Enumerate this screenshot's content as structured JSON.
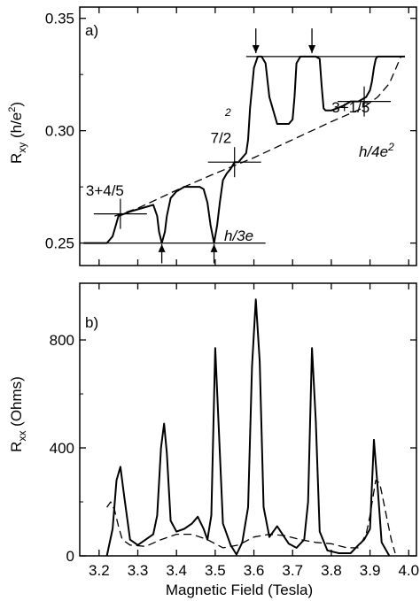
{
  "chart_data": [
    {
      "panel": "a)",
      "type": "line",
      "xlim": [
        3.15,
        4.02
      ],
      "ylim": [
        0.24,
        0.355
      ],
      "ylabel_main": "R",
      "ylabel_sub": "xy",
      "ylabel_unit": "(h/e",
      "ylabel_unit_sup": "2",
      "ylabel_unit_close": ")",
      "yticks": [
        {
          "value": 0.25,
          "label": "0.25"
        },
        {
          "value": 0.3,
          "label": "0.30"
        },
        {
          "value": 0.35,
          "label": "0.35"
        }
      ],
      "annotations": [
        {
          "text": "h/3e",
          "sup": "2",
          "x": 3.52,
          "y": 0.333,
          "style": "italic"
        },
        {
          "text": "h/4e",
          "sup": "2",
          "x": 3.62,
          "y": 0.25,
          "style": "italic"
        },
        {
          "text": "7/2",
          "x": 3.515,
          "y": 0.293
        },
        {
          "text": "3+4/5",
          "x": 3.215,
          "y": 0.2695
        },
        {
          "text": "3+1/5",
          "x": 3.85,
          "y": 0.3065
        }
      ],
      "reference_lines": [
        {
          "x": [
            3.16,
            3.63
          ],
          "y": [
            0.25,
            0.25
          ]
        },
        {
          "x": [
            3.58,
            3.99
          ],
          "y": [
            0.333,
            0.333
          ]
        }
      ],
      "crosshairs": [
        {
          "x": 3.255,
          "y": 0.263
        },
        {
          "x": 3.55,
          "y": 0.286
        },
        {
          "x": 3.885,
          "y": 0.313
        }
      ],
      "arrows": [
        {
          "x": 3.362,
          "dir": "up",
          "y_from": 0.241,
          "y_to": 0.2495
        },
        {
          "x": 3.497,
          "dir": "up",
          "y_from": 0.241,
          "y_to": 0.2495
        },
        {
          "x": 3.605,
          "dir": "down",
          "y_from": 0.3455,
          "y_to": 0.3345
        },
        {
          "x": 3.75,
          "dir": "down",
          "y_from": 0.3455,
          "y_to": 0.3345
        }
      ],
      "series": [
        {
          "style": "solid",
          "x": [
            3.16,
            3.22,
            3.235,
            3.25,
            3.265,
            3.28,
            3.3,
            3.32,
            3.34,
            3.35,
            3.355,
            3.362,
            3.37,
            3.375,
            3.385,
            3.4,
            3.42,
            3.44,
            3.46,
            3.47,
            3.48,
            3.488,
            3.497,
            3.505,
            3.512,
            3.52,
            3.53,
            3.54,
            3.55,
            3.56,
            3.57,
            3.58,
            3.585,
            3.59,
            3.6,
            3.61,
            3.62,
            3.63,
            3.64,
            3.66,
            3.69,
            3.7,
            3.705,
            3.71,
            3.72,
            3.76,
            3.77,
            3.775,
            3.78,
            3.785,
            3.8,
            3.83,
            3.85,
            3.87,
            3.89,
            3.9,
            3.905,
            3.91,
            3.915,
            3.92,
            3.99
          ],
          "y": [
            0.25,
            0.25,
            0.253,
            0.262,
            0.263,
            0.264,
            0.265,
            0.266,
            0.267,
            0.262,
            0.255,
            0.25,
            0.255,
            0.262,
            0.27,
            0.273,
            0.275,
            0.275,
            0.275,
            0.274,
            0.268,
            0.258,
            0.25,
            0.258,
            0.268,
            0.278,
            0.281,
            0.283,
            0.286,
            0.286,
            0.288,
            0.29,
            0.296,
            0.31,
            0.328,
            0.333,
            0.333,
            0.33,
            0.315,
            0.303,
            0.303,
            0.305,
            0.315,
            0.33,
            0.333,
            0.333,
            0.332,
            0.32,
            0.31,
            0.309,
            0.309,
            0.311,
            0.313,
            0.313,
            0.315,
            0.318,
            0.322,
            0.328,
            0.332,
            0.333,
            0.333
          ]
        },
        {
          "style": "dashed",
          "x": [
            3.24,
            3.3,
            3.4,
            3.5,
            3.6,
            3.7,
            3.8,
            3.88,
            3.92,
            3.95,
            3.965,
            3.98
          ],
          "y": [
            0.262,
            0.2655,
            0.2735,
            0.281,
            0.288,
            0.296,
            0.304,
            0.31,
            0.315,
            0.321,
            0.327,
            0.333
          ]
        }
      ]
    },
    {
      "panel": "b)",
      "type": "line",
      "xlim": [
        3.15,
        4.02
      ],
      "ylim": [
        0,
        1010
      ],
      "xlabel": "Magnetic Field  (Tesla)",
      "xticks": [
        {
          "value": 3.2,
          "label": "3.2"
        },
        {
          "value": 3.3,
          "label": "3.3"
        },
        {
          "value": 3.4,
          "label": "3.4"
        },
        {
          "value": 3.5,
          "label": "3.5"
        },
        {
          "value": 3.6,
          "label": "3.6"
        },
        {
          "value": 3.7,
          "label": "3.7"
        },
        {
          "value": 3.8,
          "label": "3.8"
        },
        {
          "value": 3.9,
          "label": "3.9"
        },
        {
          "value": 4.0,
          "label": "4.0"
        }
      ],
      "yticks": [
        {
          "value": 0,
          "label": "0"
        },
        {
          "value": 400,
          "label": "400"
        },
        {
          "value": 800,
          "label": "800"
        }
      ],
      "ylabel_main": "R",
      "ylabel_sub": "xx",
      "ylabel_unit": "(Ohms)",
      "series": [
        {
          "style": "solid",
          "x": [
            3.22,
            3.235,
            3.245,
            3.255,
            3.265,
            3.28,
            3.3,
            3.32,
            3.34,
            3.35,
            3.36,
            3.368,
            3.375,
            3.385,
            3.4,
            3.42,
            3.44,
            3.455,
            3.47,
            3.48,
            3.49,
            3.5,
            3.51,
            3.52,
            3.54,
            3.555,
            3.57,
            3.585,
            3.595,
            3.605,
            3.615,
            3.625,
            3.64,
            3.66,
            3.69,
            3.71,
            3.73,
            3.74,
            3.75,
            3.76,
            3.77,
            3.79,
            3.82,
            3.85,
            3.87,
            3.885,
            3.9,
            3.91,
            3.92,
            3.93,
            3.95
          ],
          "y": [
            0,
            100,
            280,
            330,
            220,
            60,
            40,
            60,
            80,
            150,
            400,
            490,
            380,
            130,
            90,
            100,
            120,
            145,
            100,
            60,
            150,
            770,
            450,
            120,
            40,
            5,
            50,
            180,
            700,
            950,
            720,
            180,
            70,
            110,
            45,
            30,
            60,
            200,
            770,
            500,
            90,
            20,
            10,
            10,
            40,
            60,
            100,
            430,
            250,
            50,
            0
          ]
        },
        {
          "style": "dashed",
          "x": [
            3.22,
            3.23,
            3.24,
            3.25,
            3.26,
            3.28,
            3.32,
            3.36,
            3.4,
            3.44,
            3.48,
            3.52,
            3.56,
            3.6,
            3.64,
            3.68,
            3.72,
            3.76,
            3.8,
            3.84,
            3.87,
            3.89,
            3.9,
            3.91,
            3.915,
            3.925,
            3.935,
            3.945,
            3.955,
            3.965
          ],
          "y": [
            180,
            200,
            170,
            110,
            60,
            40,
            35,
            60,
            80,
            80,
            60,
            30,
            40,
            70,
            80,
            75,
            60,
            50,
            45,
            30,
            30,
            80,
            150,
            240,
            280,
            270,
            200,
            130,
            60,
            10
          ]
        }
      ]
    }
  ]
}
